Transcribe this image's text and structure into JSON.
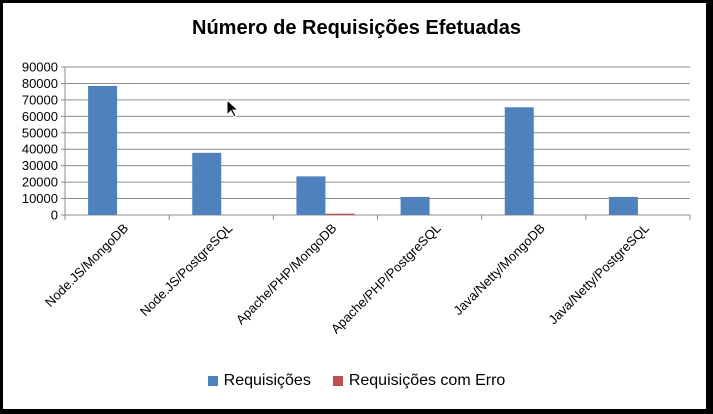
{
  "chart_data": {
    "type": "bar",
    "title": "Número de Requisições Efetuadas",
    "xlabel": "",
    "ylabel": "",
    "categories": [
      "Node.JS/MongoDB",
      "Node.JS/PostgreSQL",
      "Apache/PHP/MongoDB",
      "Apache/PHP/PostgreSQL",
      "Java/Netty/MongoDB",
      "Java/Netty/PostgreSQL"
    ],
    "series": [
      {
        "name": "Requisições",
        "color": "#4f81bd",
        "values": [
          78500,
          37800,
          23500,
          11000,
          65500,
          11000
        ]
      },
      {
        "name": "Requisições com Erro",
        "color": "#c0504d",
        "values": [
          0,
          0,
          800,
          0,
          0,
          0
        ]
      }
    ],
    "ylim": [
      0,
      90000
    ],
    "yticks": [
      "0",
      "10000",
      "20000",
      "30000",
      "40000",
      "50000",
      "60000",
      "70000",
      "80000",
      "90000"
    ],
    "grid": true,
    "legend_position": "bottom"
  }
}
